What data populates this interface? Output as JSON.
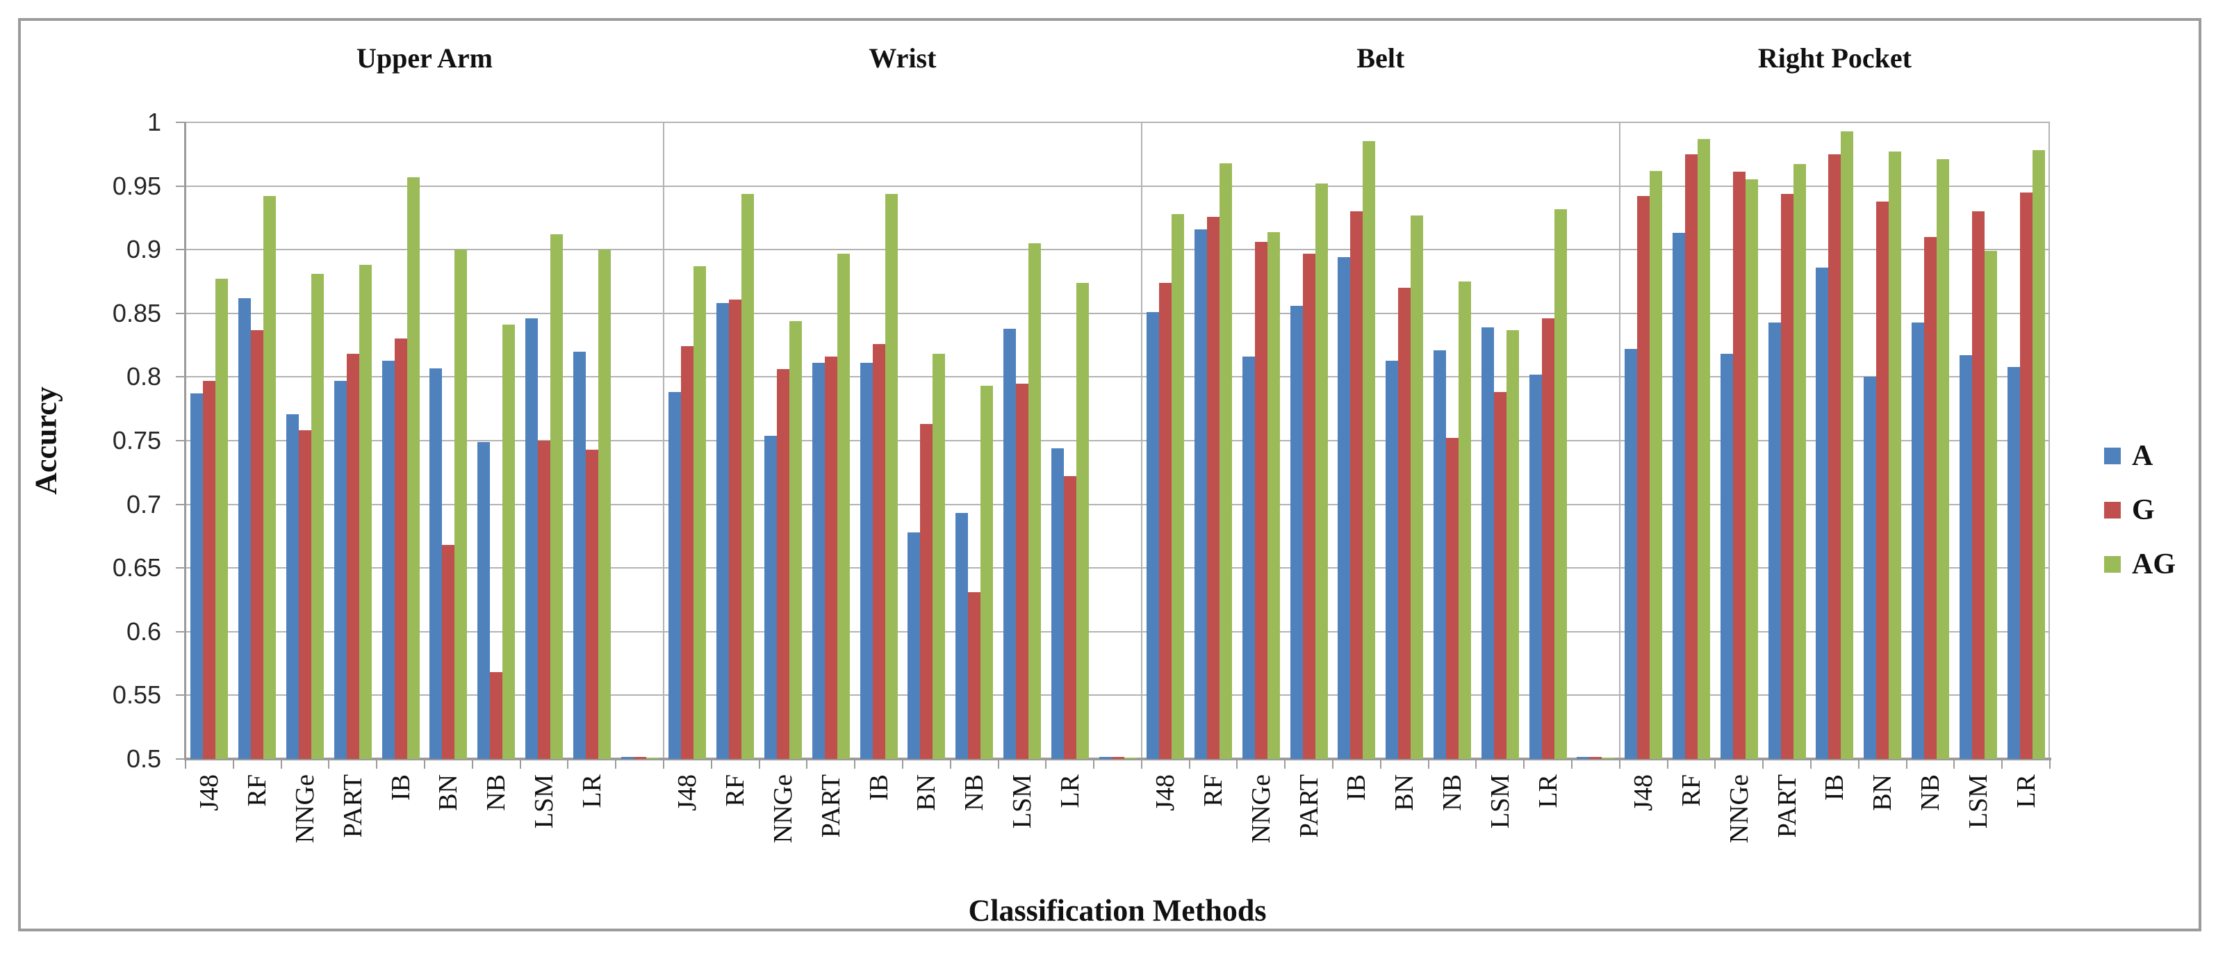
{
  "chart_data": {
    "type": "bar",
    "ylabel": "Accurcy",
    "xlabel": "Classification Methods",
    "ylim": [
      0.5,
      1.0
    ],
    "ytick_step": 0.05,
    "ytick_labels": [
      "1",
      "0.95",
      "0.9",
      "0.85",
      "0.8",
      "0.75",
      "0.7",
      "0.65",
      "0.6",
      "0.55",
      "0.5"
    ],
    "grid": true,
    "legend_position": "right",
    "categories": [
      "J48",
      "RF",
      "NNGe",
      "PART",
      "IB",
      "BN",
      "NB",
      "LSM",
      "LR"
    ],
    "series_names": [
      "A",
      "G",
      "AG"
    ],
    "series_colors": {
      "A": "#4F81BD",
      "G": "#C0504D",
      "AG": "#9BBB59"
    },
    "sections": [
      {
        "title": "Upper Arm",
        "series": [
          {
            "name": "A",
            "values": [
              0.787,
              0.862,
              0.771,
              0.797,
              0.813,
              0.807,
              0.749,
              0.846,
              0.82
            ]
          },
          {
            "name": "G",
            "values": [
              0.797,
              0.837,
              0.758,
              0.818,
              0.83,
              0.668,
              0.568,
              0.75,
              0.743
            ]
          },
          {
            "name": "AG",
            "values": [
              0.877,
              0.942,
              0.881,
              0.888,
              0.957,
              0.9,
              0.841,
              0.912,
              0.9
            ]
          }
        ]
      },
      {
        "title": "Wrist",
        "series": [
          {
            "name": "A",
            "values": [
              0.788,
              0.858,
              0.754,
              0.811,
              0.811,
              0.678,
              0.693,
              0.838,
              0.744
            ]
          },
          {
            "name": "G",
            "values": [
              0.824,
              0.861,
              0.806,
              0.816,
              0.826,
              0.763,
              0.631,
              0.795,
              0.722
            ]
          },
          {
            "name": "AG",
            "values": [
              0.887,
              0.944,
              0.844,
              0.897,
              0.944,
              0.818,
              0.793,
              0.905,
              0.874
            ]
          }
        ]
      },
      {
        "title": "Belt",
        "series": [
          {
            "name": "A",
            "values": [
              0.851,
              0.916,
              0.816,
              0.856,
              0.894,
              0.813,
              0.821,
              0.839,
              0.802
            ]
          },
          {
            "name": "G",
            "values": [
              0.874,
              0.926,
              0.906,
              0.897,
              0.93,
              0.87,
              0.752,
              0.788,
              0.846
            ]
          },
          {
            "name": "AG",
            "values": [
              0.928,
              0.968,
              0.914,
              0.952,
              0.985,
              0.927,
              0.875,
              0.837,
              0.932
            ]
          }
        ]
      },
      {
        "title": "Right Pocket",
        "series": [
          {
            "name": "A",
            "values": [
              0.822,
              0.913,
              0.818,
              0.843,
              0.886,
              0.8,
              0.843,
              0.817,
              0.808
            ]
          },
          {
            "name": "G",
            "values": [
              0.942,
              0.975,
              0.961,
              0.944,
              0.975,
              0.938,
              0.91,
              0.93,
              0.945
            ]
          },
          {
            "name": "AG",
            "values": [
              0.962,
              0.987,
              0.955,
              0.967,
              0.993,
              0.977,
              0.971,
              0.899,
              0.978
            ]
          }
        ]
      }
    ],
    "separator_values": {
      "A": 0.5015,
      "G": 0.5015,
      "AG": 0.501
    }
  },
  "legend": {
    "entries": [
      {
        "label": "A",
        "color": "#4F81BD"
      },
      {
        "label": "G",
        "color": "#C0504D"
      },
      {
        "label": "AG",
        "color": "#9BBB59"
      }
    ]
  },
  "colors": {
    "grid": "#b3b3b3",
    "axis": "#9b9b9b",
    "border": "#9b9b9b",
    "text": "#111111"
  }
}
